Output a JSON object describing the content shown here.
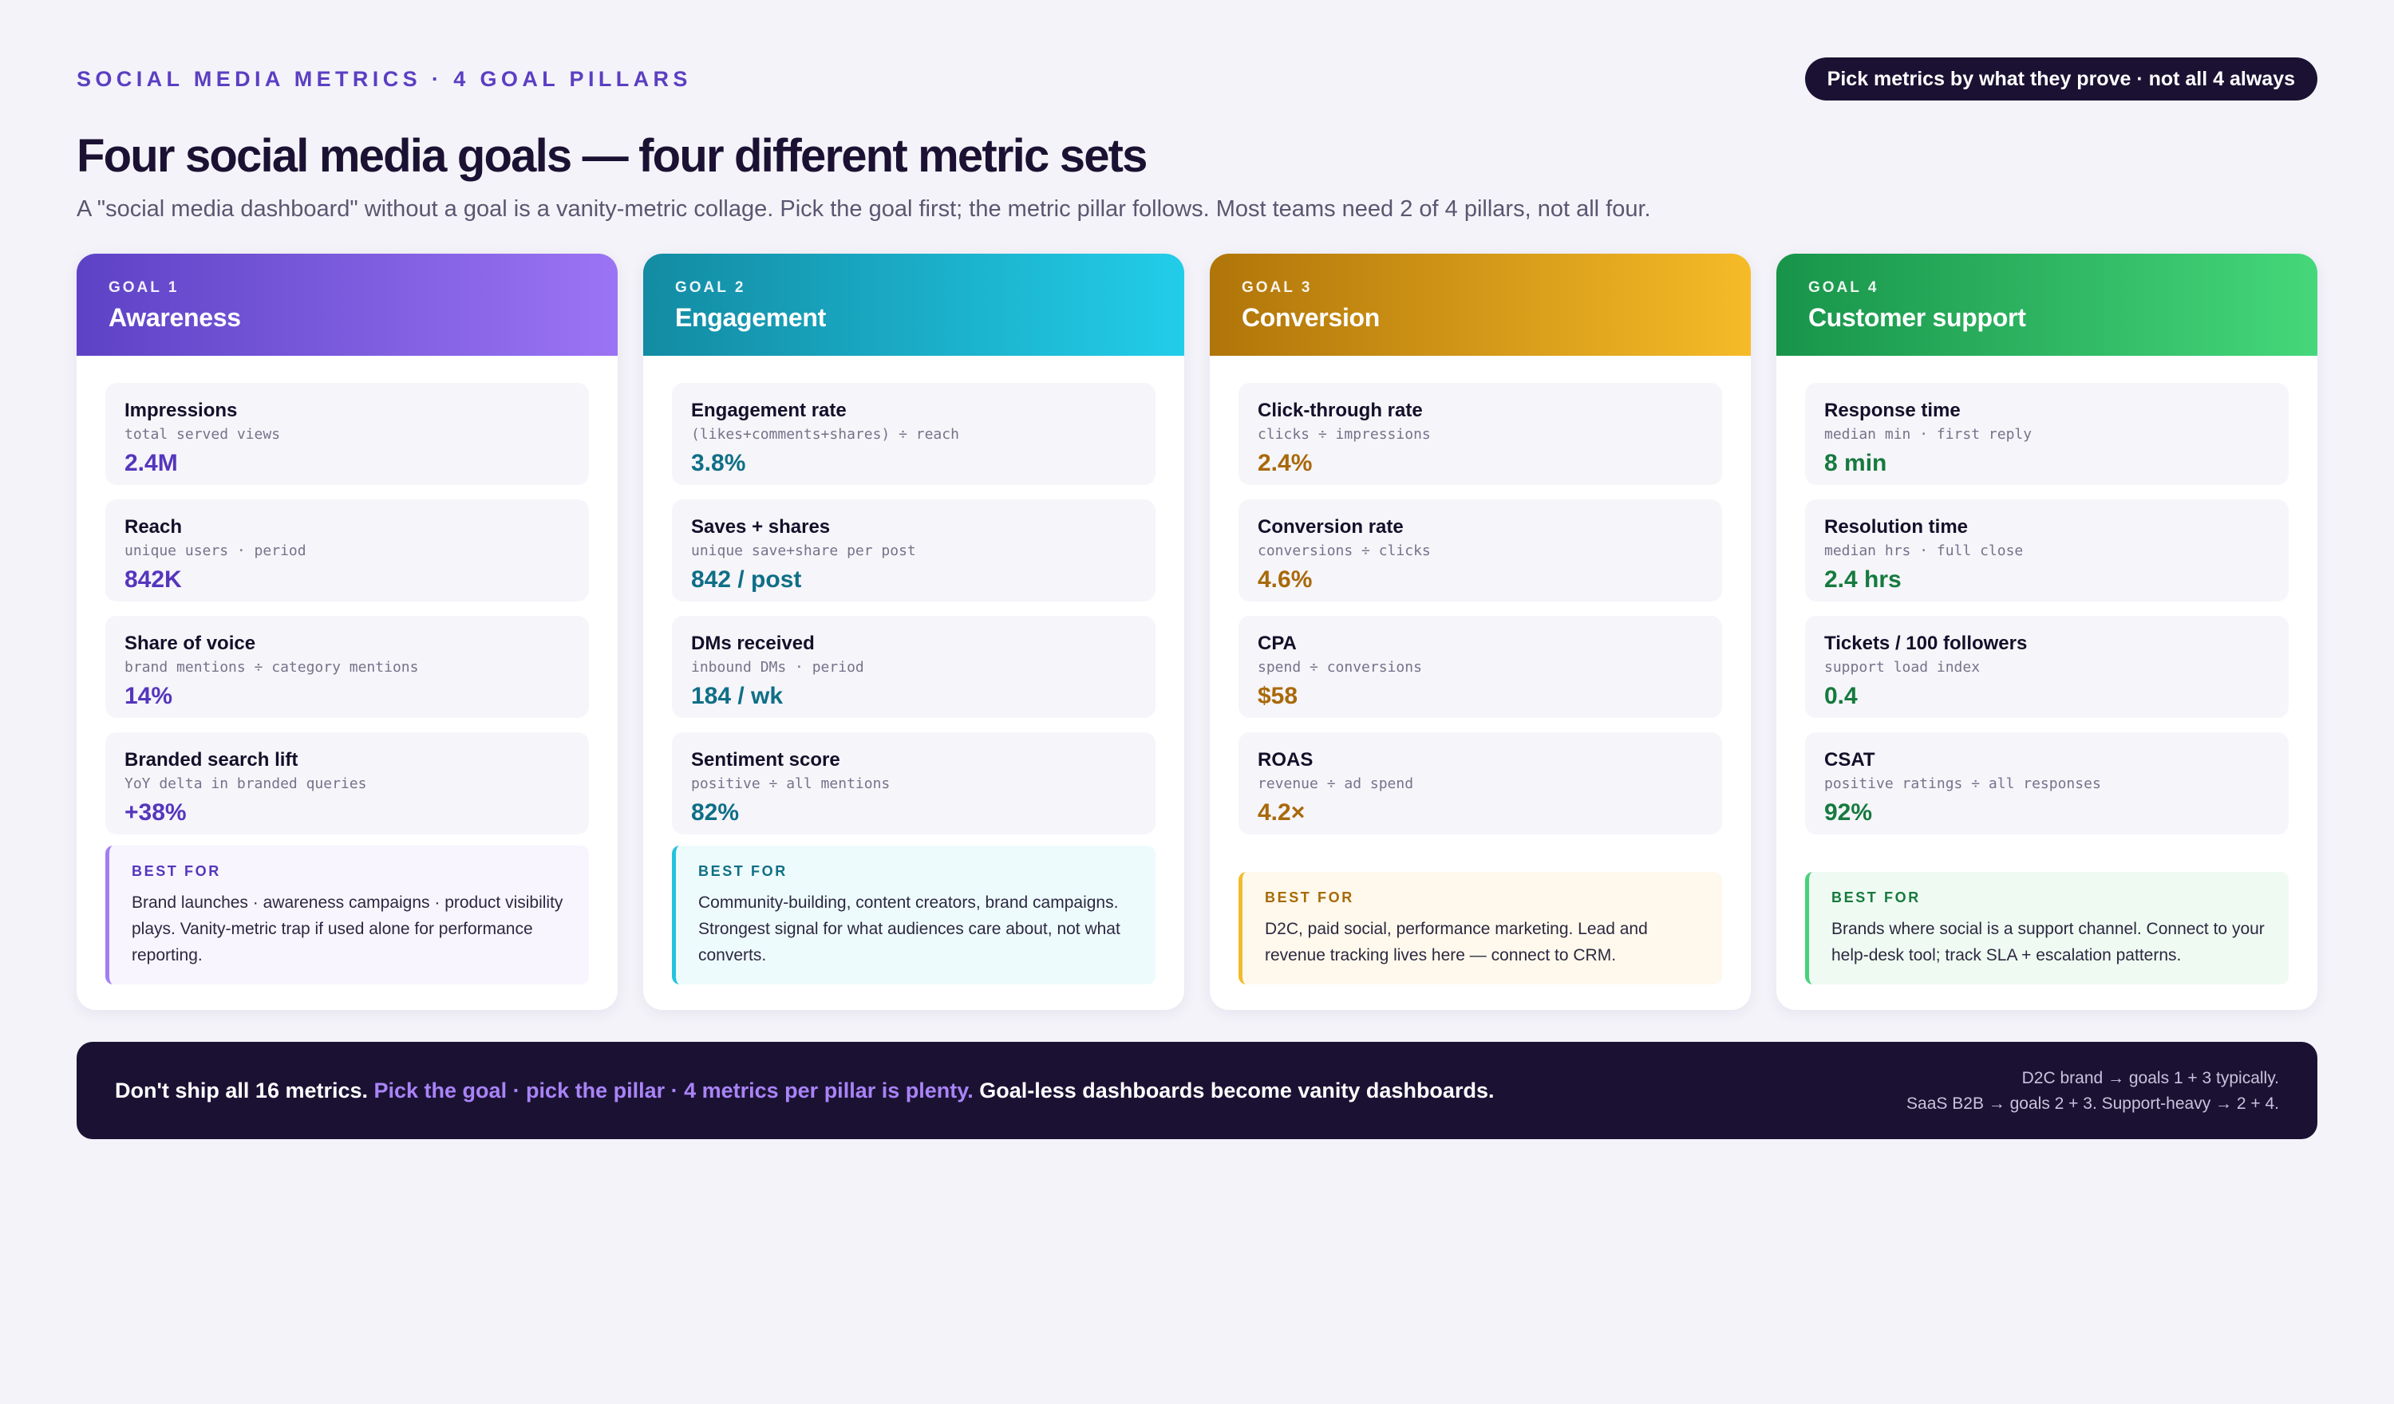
{
  "header": {
    "eyebrow": "SOCIAL MEDIA METRICS · 4 GOAL PILLARS",
    "pill": "Pick metrics by what they prove · not all 4 always",
    "title": "Four social media goals — four different metric sets",
    "subtitle": "A \"social media dashboard\" without a goal is a vanity-metric collage. Pick the goal first; the metric pillar follows. Most teams need 2 of 4 pillars, not all four."
  },
  "goals": [
    {
      "number": "GOAL 1",
      "name": "Awareness",
      "accent": "#5d42c6",
      "metrics": [
        {
          "name": "Impressions",
          "formula": "total served views",
          "value": "2.4M"
        },
        {
          "name": "Reach",
          "formula": "unique users · period",
          "value": "842K"
        },
        {
          "name": "Share of voice",
          "formula": "brand mentions ÷ category mentions",
          "value": "14%"
        },
        {
          "name": "Branded search lift",
          "formula": "YoY delta in branded queries",
          "value": "+38%"
        }
      ],
      "best_for_label": "BEST FOR",
      "best_for": "Brand launches · awareness campaigns · product visibility plays. Vanity-metric trap if used alone for performance reporting."
    },
    {
      "number": "GOAL 2",
      "name": "Engagement",
      "accent": "#138ba3",
      "metrics": [
        {
          "name": "Engagement rate",
          "formula": "(likes+comments+shares) ÷ reach",
          "value": "3.8%"
        },
        {
          "name": "Saves + shares",
          "formula": "unique save+share per post",
          "value": "842 / post"
        },
        {
          "name": "DMs received",
          "formula": "inbound DMs · period",
          "value": "184 / wk"
        },
        {
          "name": "Sentiment score",
          "formula": "positive ÷ all mentions",
          "value": "82%"
        }
      ],
      "best_for_label": "BEST FOR",
      "best_for": "Community-building, content creators, brand campaigns. Strongest signal for what audiences care about, not what converts."
    },
    {
      "number": "GOAL 3",
      "name": "Conversion",
      "accent": "#b07509",
      "metrics": [
        {
          "name": "Click-through rate",
          "formula": "clicks ÷ impressions",
          "value": "2.4%"
        },
        {
          "name": "Conversion rate",
          "formula": "conversions ÷ clicks",
          "value": "4.6%"
        },
        {
          "name": "CPA",
          "formula": "spend ÷ conversions",
          "value": "$58"
        },
        {
          "name": "ROAS",
          "formula": "revenue ÷ ad spend",
          "value": "4.2×"
        }
      ],
      "best_for_label": "BEST FOR",
      "best_for": "D2C, paid social, performance marketing. Lead and revenue tracking lives here — connect to CRM."
    },
    {
      "number": "GOAL 4",
      "name": "Customer support",
      "accent": "#18944a",
      "metrics": [
        {
          "name": "Response time",
          "formula": "median min · first reply",
          "value": "8 min"
        },
        {
          "name": "Resolution time",
          "formula": "median hrs · full close",
          "value": "2.4 hrs"
        },
        {
          "name": "Tickets / 100 followers",
          "formula": "support load index",
          "value": "0.4"
        },
        {
          "name": "CSAT",
          "formula": "positive ratings ÷ all responses",
          "value": "92%"
        }
      ],
      "best_for_label": "BEST FOR",
      "best_for": "Brands where social is a support channel. Connect to your help-desk tool; track SLA + escalation patterns."
    }
  ],
  "footer": {
    "lead": "Don't ship all 16 metrics. ",
    "highlight": "Pick the goal · pick the pillar · 4 metrics per pillar is plenty.",
    "tail": " Goal-less dashboards become vanity dashboards.",
    "side_line1": "D2C brand → goals 1 + 3 typically.",
    "side_line2": "SaaS B2B → goals 2 + 3. Support-heavy → 2 + 4."
  }
}
